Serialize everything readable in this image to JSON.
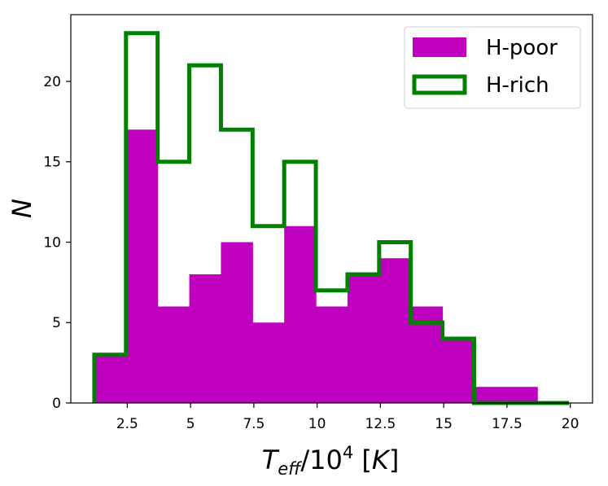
{
  "chart_data": {
    "type": "histogram",
    "bin_edges": [
      1.2,
      2.45,
      3.7,
      4.95,
      6.2,
      7.45,
      8.7,
      9.95,
      11.2,
      12.45,
      13.7,
      14.95,
      16.2,
      17.45,
      18.7,
      19.95
    ],
    "series": [
      {
        "name": "H-poor",
        "style": "filled",
        "color": "#bf00bf",
        "values": [
          3,
          17,
          6,
          8,
          10,
          5,
          11,
          6,
          8,
          9,
          6,
          4,
          1,
          1,
          0
        ]
      },
      {
        "name": "H-rich",
        "style": "step",
        "color": "#008000",
        "values": [
          3,
          23,
          15,
          21,
          17,
          11,
          15,
          7,
          8,
          10,
          5,
          4,
          0,
          0,
          0
        ]
      }
    ],
    "xlabel": "T_eff/10^4 [K]",
    "ylabel": "N",
    "xlim": [
      0.27,
      20.88
    ],
    "ylim": [
      0,
      24.15
    ],
    "xticks": [
      2.5,
      5,
      7.5,
      10,
      12.5,
      15,
      17.5,
      20
    ],
    "xtick_labels": [
      "2.5",
      "5",
      "7.5",
      "10",
      "12.5",
      "15",
      "17.5",
      "20"
    ],
    "yticks": [
      0,
      5,
      10,
      15,
      20
    ],
    "ytick_labels": [
      "0",
      "5",
      "10",
      "15",
      "20"
    ],
    "legend_position": "upper-right",
    "grid": false
  }
}
